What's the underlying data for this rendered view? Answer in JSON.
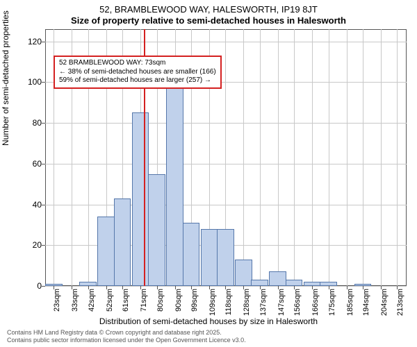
{
  "title_line1": "52, BRAMBLEWOOD WAY, HALESWORTH, IP19 8JT",
  "title_line2": "Size of property relative to semi-detached houses in Halesworth",
  "y_axis_label": "Number of semi-detached properties",
  "x_axis_label": "Distribution of semi-detached houses by size in Halesworth",
  "attribution_line1": "Contains HM Land Registry data © Crown copyright and database right 2025.",
  "attribution_line2": "Contains public sector information licensed under the Open Government Licence v3.0.",
  "annotation": {
    "line1": "52 BRAMBLEWOOD WAY: 73sqm",
    "line2": "← 38% of semi-detached houses are smaller (166)",
    "line3": "59% of semi-detached houses are larger (257) →"
  },
  "chart": {
    "type": "histogram",
    "ylim": [
      0,
      126
    ],
    "yticks": [
      0,
      20,
      40,
      60,
      80,
      100,
      120
    ],
    "x_domain_sqm": [
      18.25,
      218.25
    ],
    "x_tick_labels": [
      "23sqm",
      "33sqm",
      "42sqm",
      "52sqm",
      "61sqm",
      "71sqm",
      "80sqm",
      "90sqm",
      "99sqm",
      "109sqm",
      "118sqm",
      "128sqm",
      "137sqm",
      "147sqm",
      "156sqm",
      "166sqm",
      "175sqm",
      "185sqm",
      "194sqm",
      "204sqm",
      "213sqm"
    ],
    "x_tick_positions_sqm": [
      23,
      33,
      42,
      52,
      61,
      71,
      80,
      90,
      99,
      109,
      118,
      128,
      137,
      147,
      156,
      166,
      175,
      185,
      194,
      204,
      213
    ],
    "bar_width_sqm": 9.5,
    "bars": [
      {
        "x_sqm": 23,
        "value": 1
      },
      {
        "x_sqm": 33,
        "value": 0
      },
      {
        "x_sqm": 42,
        "value": 2
      },
      {
        "x_sqm": 52,
        "value": 34
      },
      {
        "x_sqm": 61,
        "value": 43
      },
      {
        "x_sqm": 71,
        "value": 85
      },
      {
        "x_sqm": 80,
        "value": 55
      },
      {
        "x_sqm": 90,
        "value": 98
      },
      {
        "x_sqm": 99,
        "value": 31
      },
      {
        "x_sqm": 109,
        "value": 28
      },
      {
        "x_sqm": 118,
        "value": 28
      },
      {
        "x_sqm": 128,
        "value": 13
      },
      {
        "x_sqm": 137,
        "value": 3
      },
      {
        "x_sqm": 147,
        "value": 7
      },
      {
        "x_sqm": 156,
        "value": 3
      },
      {
        "x_sqm": 166,
        "value": 2
      },
      {
        "x_sqm": 175,
        "value": 2
      },
      {
        "x_sqm": 185,
        "value": 0
      },
      {
        "x_sqm": 194,
        "value": 1
      },
      {
        "x_sqm": 204,
        "value": 0
      },
      {
        "x_sqm": 213,
        "value": 0
      }
    ],
    "marker_value_sqm": 73,
    "colors": {
      "bar_fill": "#c0d1eb",
      "bar_stroke": "#5577aa",
      "grid": "#c8c8c8",
      "axis": "#555555",
      "marker": "#d42020",
      "annotation_border": "#d42020",
      "background": "#ffffff"
    },
    "font_sizes": {
      "title": 13,
      "axis_label": 12,
      "tick": 12,
      "x_tick": 11,
      "annotation": 10,
      "attribution": 9
    }
  }
}
